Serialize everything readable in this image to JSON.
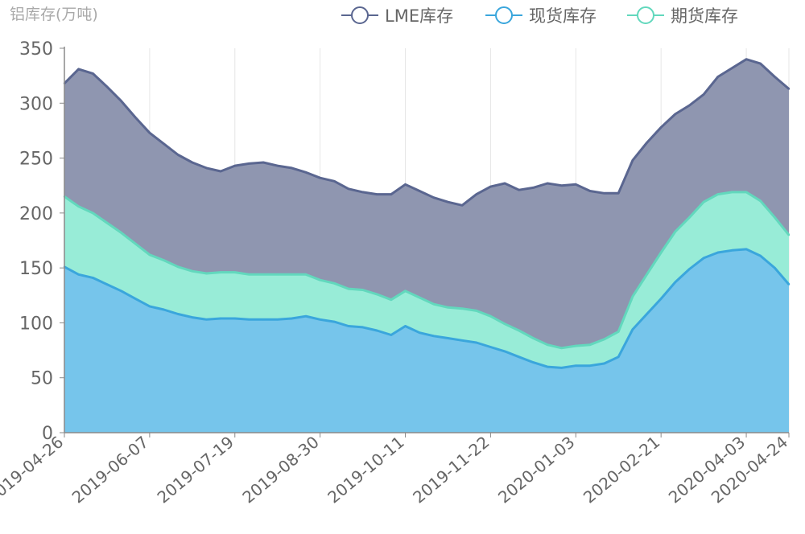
{
  "chart_data": {
    "type": "area",
    "title": "铝库存(万吨)",
    "ylim": [
      0,
      350
    ],
    "yticks": [
      0,
      50,
      100,
      150,
      200,
      250,
      300,
      350
    ],
    "x_labels": [
      "2019-04-26",
      "2019-06-07",
      "2019-07-19",
      "2019-08-30",
      "2019-10-11",
      "2019-11-22",
      "2020-01-03",
      "2020-02-21",
      "2020-04-03",
      "2020-04-24"
    ],
    "x_label_index": [
      0,
      6,
      12,
      18,
      24,
      30,
      36,
      42,
      48,
      51
    ],
    "grid": "vertical",
    "legend_position": "top-right",
    "series": [
      {
        "name": "LME库存",
        "color": "#5a6690",
        "fill": "#8f96b0",
        "values": [
          318,
          331,
          327,
          315,
          302,
          287,
          273,
          263,
          253,
          246,
          241,
          238,
          243,
          245,
          246,
          243,
          241,
          237,
          232,
          229,
          222,
          219,
          217,
          217,
          226,
          220,
          214,
          210,
          207,
          217,
          224,
          227,
          221,
          223,
          227,
          225,
          226,
          220,
          218,
          218,
          248,
          264,
          278,
          290,
          298,
          308,
          324,
          332,
          340,
          336,
          324,
          313
        ]
      },
      {
        "name": "现货库存",
        "color": "#3aa6dc",
        "fill": "#76c5eb",
        "values": [
          151,
          144,
          141,
          135,
          129,
          122,
          115,
          112,
          108,
          105,
          103,
          104,
          104,
          103,
          103,
          103,
          104,
          106,
          103,
          101,
          97,
          96,
          93,
          89,
          97,
          91,
          88,
          86,
          84,
          82,
          78,
          74,
          69,
          64,
          60,
          59,
          61,
          61,
          63,
          69,
          94,
          108,
          122,
          137,
          149,
          159,
          164,
          166,
          167,
          161,
          150,
          135
        ]
      },
      {
        "name": "期货库存",
        "color": "#62d8bd",
        "fill": "#98ecd7",
        "values": [
          215,
          206,
          200,
          191,
          182,
          172,
          162,
          157,
          151,
          147,
          145,
          146,
          146,
          144,
          144,
          144,
          144,
          144,
          139,
          136,
          131,
          130,
          126,
          121,
          129,
          123,
          117,
          114,
          113,
          111,
          106,
          99,
          93,
          86,
          80,
          77,
          79,
          80,
          85,
          92,
          124,
          144,
          164,
          183,
          196,
          210,
          217,
          219,
          219,
          211,
          196,
          180
        ]
      }
    ]
  }
}
